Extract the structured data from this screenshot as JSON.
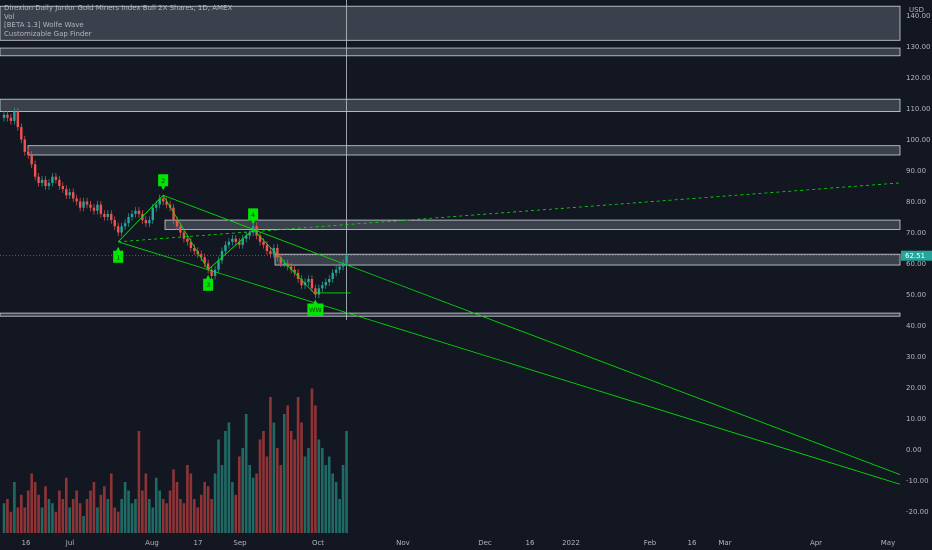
{
  "legend": {
    "symbol": "Direxion Daily Junior Gold Miners Index Bull 2X Shares, 1D, AMEX",
    "volume": "Vol",
    "indicator1": "[BETA 1.3] Wolfe Wave",
    "indicator2": "Customizable Gap Finder"
  },
  "colors": {
    "background": "#131722",
    "up": "#26a69a",
    "down": "#ef5350",
    "vol_up": "#1e6b65",
    "vol_down": "#8f3436",
    "wolfe": "#00e600",
    "gap_fill": "#4a4f5c",
    "gap_border": "#d1d4dc",
    "price_tag": "#26a69a"
  },
  "chart_data": {
    "type": "candlestick",
    "title": "Direxion Daily Junior Gold Miners Index Bull 2X Shares, 1D, AMEX",
    "currency": "USD",
    "last_price": "62.51",
    "yticks": [
      "140.00",
      "130.00",
      "120.00",
      "110.00",
      "100.00",
      "90.00",
      "80.00",
      "70.00",
      "60.00",
      "50.00",
      "40.00",
      "30.00",
      "20.00",
      "10.00",
      "0.00",
      "-10.00",
      "-20.00"
    ],
    "xticks": [
      "16",
      "Jul",
      "Aug",
      "17",
      "Sep",
      "Oct",
      "Nov",
      "Dec",
      "16",
      "2022",
      "Feb",
      "16",
      "Mar",
      "Apr",
      "May"
    ],
    "ylim": [
      -25,
      143
    ],
    "close": [
      108,
      107,
      106,
      109,
      104,
      100,
      96,
      95,
      92,
      88,
      86,
      87,
      85,
      86,
      88,
      87,
      85,
      84,
      82,
      83,
      81,
      80,
      78,
      80,
      79,
      78,
      77,
      79,
      76,
      75,
      76,
      74,
      72,
      70,
      72,
      73,
      75,
      76,
      77,
      76,
      74,
      73,
      74,
      78,
      79,
      81,
      80,
      79,
      78,
      74,
      72,
      70,
      68,
      67,
      65,
      64,
      63,
      62,
      60,
      58,
      56,
      58,
      61,
      64,
      66,
      67,
      68,
      67,
      66,
      68,
      69,
      70,
      72,
      69,
      67,
      66,
      64,
      63,
      65,
      62,
      60,
      60,
      59,
      58,
      57,
      55,
      53,
      54,
      55,
      52,
      50,
      52,
      53,
      54,
      55,
      57,
      58,
      59,
      60,
      62.51
    ],
    "volume": [
      3.5,
      4,
      2.5,
      6,
      3,
      4.5,
      3,
      5,
      7,
      6,
      4.5,
      3,
      5.5,
      4,
      3.5,
      2.5,
      5,
      4,
      6.5,
      3,
      4,
      5,
      3.5,
      2,
      4,
      5,
      6,
      3,
      4.5,
      5.5,
      4,
      7,
      3,
      2.5,
      4,
      6,
      5,
      3.5,
      4,
      12,
      5,
      7,
      4,
      3,
      6.5,
      5,
      4,
      3.5,
      5,
      7.5,
      6,
      4,
      3.5,
      8,
      7,
      4,
      3,
      4.5,
      6,
      5.5,
      4,
      7,
      11,
      8,
      12,
      13,
      6,
      4.5,
      9,
      10,
      14,
      8,
      6.5,
      7,
      11,
      12,
      9,
      16,
      13,
      10,
      8,
      14,
      15,
      12,
      11,
      16,
      13,
      9,
      10,
      17,
      15,
      11,
      10,
      8,
      9,
      7,
      6,
      4,
      8,
      12
    ],
    "wolfe_points": [
      {
        "label": "1",
        "x_index": 33,
        "y": 67
      },
      {
        "label": "2",
        "x_index": 46,
        "y": 82
      },
      {
        "label": "3",
        "x_index": 59,
        "y": 58
      },
      {
        "label": "4",
        "x_index": 72,
        "y": 71
      },
      {
        "label": "WW",
        "x_index": 90,
        "y": 50
      }
    ],
    "gap_zones": [
      {
        "low": 132,
        "high": 143
      },
      {
        "low": 127,
        "high": 129.5
      },
      {
        "low": 109,
        "high": 113
      },
      {
        "low": 95,
        "high": 98
      },
      {
        "low": 71,
        "high": 74
      },
      {
        "low": 59.5,
        "high": 63
      },
      {
        "low": 43,
        "high": 44
      }
    ]
  }
}
